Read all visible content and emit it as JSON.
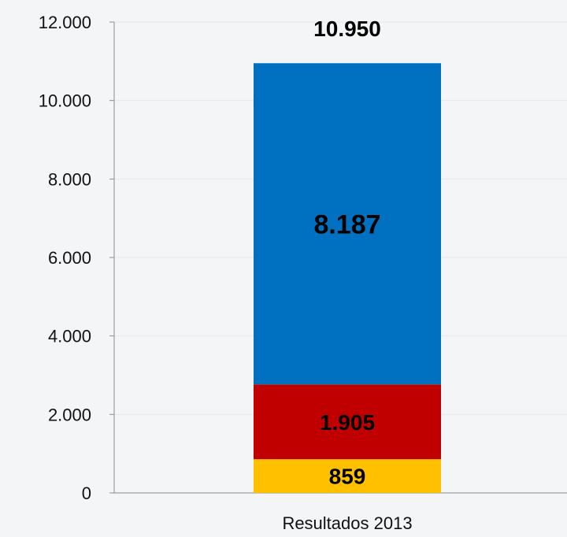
{
  "chart_data": {
    "type": "bar",
    "stacked": true,
    "categories": [
      "Resultados 2013"
    ],
    "series": [
      {
        "color": "#ffc000",
        "values": [
          859
        ],
        "label": "859"
      },
      {
        "color": "#c00000",
        "values": [
          1905
        ],
        "label": "1.905"
      },
      {
        "color": "#0070c0",
        "values": [
          8187
        ],
        "label": "8.187"
      }
    ],
    "total": {
      "value": 10950,
      "label": "10.950"
    },
    "ylim": [
      0,
      12000
    ],
    "yticks": [
      {
        "value": 0,
        "label": "0"
      },
      {
        "value": 2000,
        "label": "2.000"
      },
      {
        "value": 4000,
        "label": "4.000"
      },
      {
        "value": 6000,
        "label": "6.000"
      },
      {
        "value": 8000,
        "label": "8.000"
      },
      {
        "value": 10000,
        "label": "10.000"
      },
      {
        "value": 12000,
        "label": "12.000"
      }
    ],
    "grid": true,
    "legend": "none"
  }
}
